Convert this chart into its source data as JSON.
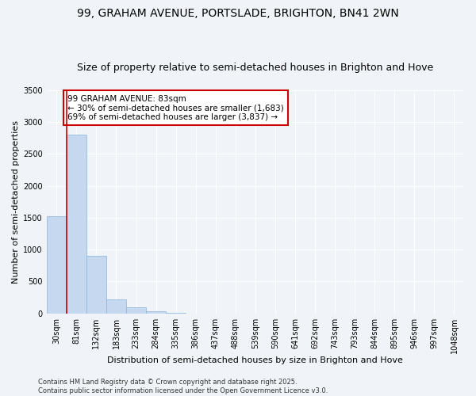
{
  "title_line1": "99, GRAHAM AVENUE, PORTSLADE, BRIGHTON, BN41 2WN",
  "title_line2": "Size of property relative to semi-detached houses in Brighton and Hove",
  "xlabel": "Distribution of semi-detached houses by size in Brighton and Hove",
  "ylabel": "Number of semi-detached properties",
  "bar_labels": [
    "30sqm",
    "81sqm",
    "132sqm",
    "183sqm",
    "233sqm",
    "284sqm",
    "335sqm",
    "386sqm",
    "437sqm",
    "488sqm",
    "539sqm",
    "590sqm",
    "641sqm",
    "692sqm",
    "743sqm",
    "793sqm",
    "844sqm",
    "895sqm",
    "946sqm",
    "997sqm",
    "1048sqm"
  ],
  "bar_values": [
    1530,
    2800,
    900,
    220,
    100,
    30,
    10,
    0,
    0,
    0,
    0,
    0,
    0,
    0,
    0,
    0,
    0,
    0,
    0,
    0,
    0
  ],
  "bar_color": "#c5d8f0",
  "bar_edge_color": "#89b4d9",
  "background_color": "#f0f4f8",
  "grid_color": "#ffffff",
  "vline_x": 0.5,
  "vline_color": "#cc0000",
  "annotation_text": "99 GRAHAM AVENUE: 83sqm\n← 30% of semi-detached houses are smaller (1,683)\n69% of semi-detached houses are larger (3,837) →",
  "annotation_box_color": "#ffffff",
  "annotation_box_edge": "#cc0000",
  "ylim": [
    0,
    3500
  ],
  "yticks": [
    0,
    500,
    1000,
    1500,
    2000,
    2500,
    3000,
    3500
  ],
  "footer_text": "Contains HM Land Registry data © Crown copyright and database right 2025.\nContains public sector information licensed under the Open Government Licence v3.0.",
  "title_fontsize": 10,
  "subtitle_fontsize": 9,
  "axis_label_fontsize": 8,
  "tick_fontsize": 7,
  "annotation_fontsize": 7.5,
  "footer_fontsize": 6
}
